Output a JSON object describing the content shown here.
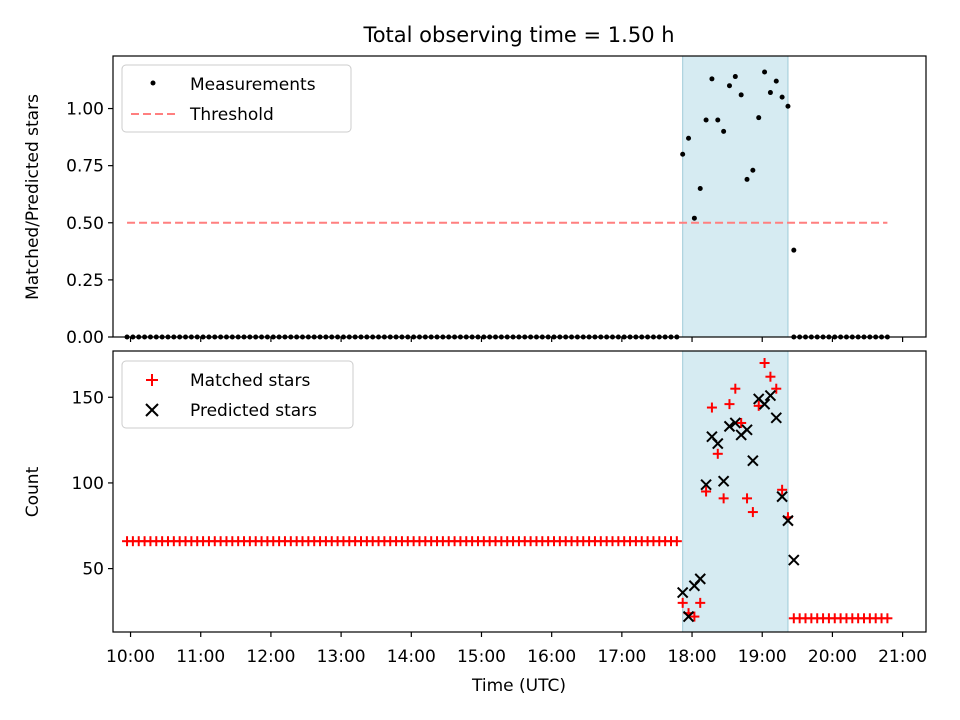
{
  "title": "Total observing time = 1.50 h",
  "xlabel": "Time (UTC)",
  "x_ticks": [
    "10:00",
    "11:00",
    "12:00",
    "13:00",
    "14:00",
    "15:00",
    "16:00",
    "17:00",
    "18:00",
    "19:00",
    "20:00",
    "21:00"
  ],
  "colors": {
    "measurement": "#000000",
    "threshold": "#ff7f7f",
    "matched": "#ff0000",
    "predicted": "#000000",
    "highlight": "#add8e6"
  },
  "chart_data": [
    {
      "type": "scatter",
      "ylabel": "Matched/Predicted stars",
      "xlim": [
        "09:45",
        "21:20"
      ],
      "ylim": [
        0.0,
        1.23
      ],
      "y_ticks": [
        "0.00",
        "0.25",
        "0.50",
        "0.75",
        "1.00"
      ],
      "legend": {
        "position": "top-left",
        "entries": [
          "Measurements",
          "Threshold"
        ]
      },
      "highlight_span": {
        "start": "17:52",
        "end": "19:22"
      },
      "threshold": {
        "label": "Threshold",
        "value": 0.5,
        "x_start": "09:57",
        "x_end": "20:47",
        "style": "dashed"
      },
      "series": [
        {
          "name": "Measurements",
          "marker": "dot",
          "zero_run": {
            "start": "09:57",
            "end": "17:47",
            "step_min": 5,
            "value": 0
          },
          "zero_run_2": {
            "start": "19:27",
            "end": "20:47",
            "step_min": 5,
            "value": 0
          },
          "points": [
            [
              "17:52",
              0.8
            ],
            [
              "17:57",
              0.87
            ],
            [
              "18:02",
              0.52
            ],
            [
              "18:07",
              0.65
            ],
            [
              "18:12",
              0.95
            ],
            [
              "18:17",
              1.13
            ],
            [
              "18:22",
              0.95
            ],
            [
              "18:27",
              0.9
            ],
            [
              "18:32",
              1.1
            ],
            [
              "18:37",
              1.14
            ],
            [
              "18:42",
              1.06
            ],
            [
              "18:47",
              0.69
            ],
            [
              "18:52",
              0.73
            ],
            [
              "18:57",
              0.96
            ],
            [
              "19:02",
              1.16
            ],
            [
              "19:07",
              1.07
            ],
            [
              "19:12",
              1.12
            ],
            [
              "19:17",
              1.05
            ],
            [
              "19:22",
              1.01
            ],
            [
              "19:27",
              0.38
            ]
          ]
        }
      ]
    },
    {
      "type": "scatter",
      "ylabel": "Count",
      "xlabel": "Time (UTC)",
      "xlim": [
        "09:45",
        "21:20"
      ],
      "ylim": [
        13,
        177
      ],
      "y_ticks": [
        "50",
        "100",
        "150"
      ],
      "legend": {
        "position": "top-left",
        "entries": [
          "Matched stars",
          "Predicted stars"
        ]
      },
      "highlight_span": {
        "start": "17:52",
        "end": "19:22"
      },
      "series": [
        {
          "name": "Matched stars",
          "marker": "plus",
          "constant_run": {
            "start": "09:57",
            "end": "17:47",
            "step_min": 5,
            "value": 66
          },
          "constant_run_2": {
            "start": "19:27",
            "end": "20:47",
            "step_min": 5,
            "value": 21
          },
          "points": [
            [
              "17:52",
              30
            ],
            [
              "17:57",
              24
            ],
            [
              "18:02",
              22
            ],
            [
              "18:07",
              30
            ],
            [
              "18:12",
              95
            ],
            [
              "18:17",
              144
            ],
            [
              "18:22",
              117
            ],
            [
              "18:27",
              91
            ],
            [
              "18:32",
              146
            ],
            [
              "18:37",
              155
            ],
            [
              "18:42",
              135
            ],
            [
              "18:47",
              91
            ],
            [
              "18:52",
              83
            ],
            [
              "18:57",
              145
            ],
            [
              "19:02",
              170
            ],
            [
              "19:07",
              162
            ],
            [
              "19:12",
              155
            ],
            [
              "19:17",
              96
            ],
            [
              "19:22",
              80
            ]
          ]
        },
        {
          "name": "Predicted stars",
          "marker": "x",
          "points": [
            [
              "17:52",
              36
            ],
            [
              "17:57",
              22
            ],
            [
              "18:02",
              40
            ],
            [
              "18:07",
              44
            ],
            [
              "18:12",
              99
            ],
            [
              "18:17",
              127
            ],
            [
              "18:22",
              123
            ],
            [
              "18:27",
              101
            ],
            [
              "18:32",
              133
            ],
            [
              "18:37",
              135
            ],
            [
              "18:42",
              128
            ],
            [
              "18:47",
              131
            ],
            [
              "18:52",
              113
            ],
            [
              "18:57",
              149
            ],
            [
              "19:02",
              146
            ],
            [
              "19:07",
              151
            ],
            [
              "19:12",
              138
            ],
            [
              "19:17",
              92
            ],
            [
              "19:22",
              78
            ],
            [
              "19:27",
              55
            ]
          ]
        }
      ]
    }
  ]
}
